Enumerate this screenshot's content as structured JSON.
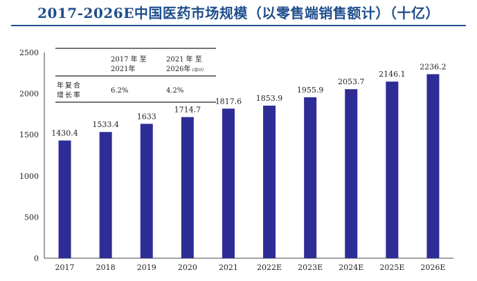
{
  "title": "2017-2026E中国医药市场规模（以零售端销售额计）（十亿）",
  "chart_data": {
    "type": "bar",
    "title": "2017-2026E中国医药市场规模（以零售端销售额计）（十亿）",
    "categories": [
      "2017",
      "2018",
      "2019",
      "2020",
      "2021",
      "2022E",
      "2023E",
      "2024E",
      "2025E",
      "2026E"
    ],
    "values": [
      1430.4,
      1533.4,
      1633,
      1714.7,
      1817.6,
      1853.9,
      1955.9,
      2053.7,
      2146.1,
      2236.2
    ],
    "value_labels": [
      "1430.4",
      "1533.4",
      "1633",
      "1714.7",
      "1817.6",
      "1853.9",
      "1955.9",
      "2053.7",
      "2146.1",
      "2236.2"
    ],
    "yticks": [
      "0",
      "500",
      "1000",
      "1500",
      "2000",
      "2500"
    ],
    "ylim": [
      0,
      2500
    ],
    "grid": false,
    "bar_color": "#2e2d96"
  },
  "cagr_table": {
    "headers": [
      {
        "line1": "2017 年 至",
        "line2": "2021年",
        "note": ""
      },
      {
        "line1": "2021 年 至",
        "line2": "2026年",
        "note": "(估计)"
      }
    ],
    "row_label": [
      "年复合",
      "增长率"
    ],
    "values": [
      "6.2%",
      "4.2%"
    ]
  }
}
